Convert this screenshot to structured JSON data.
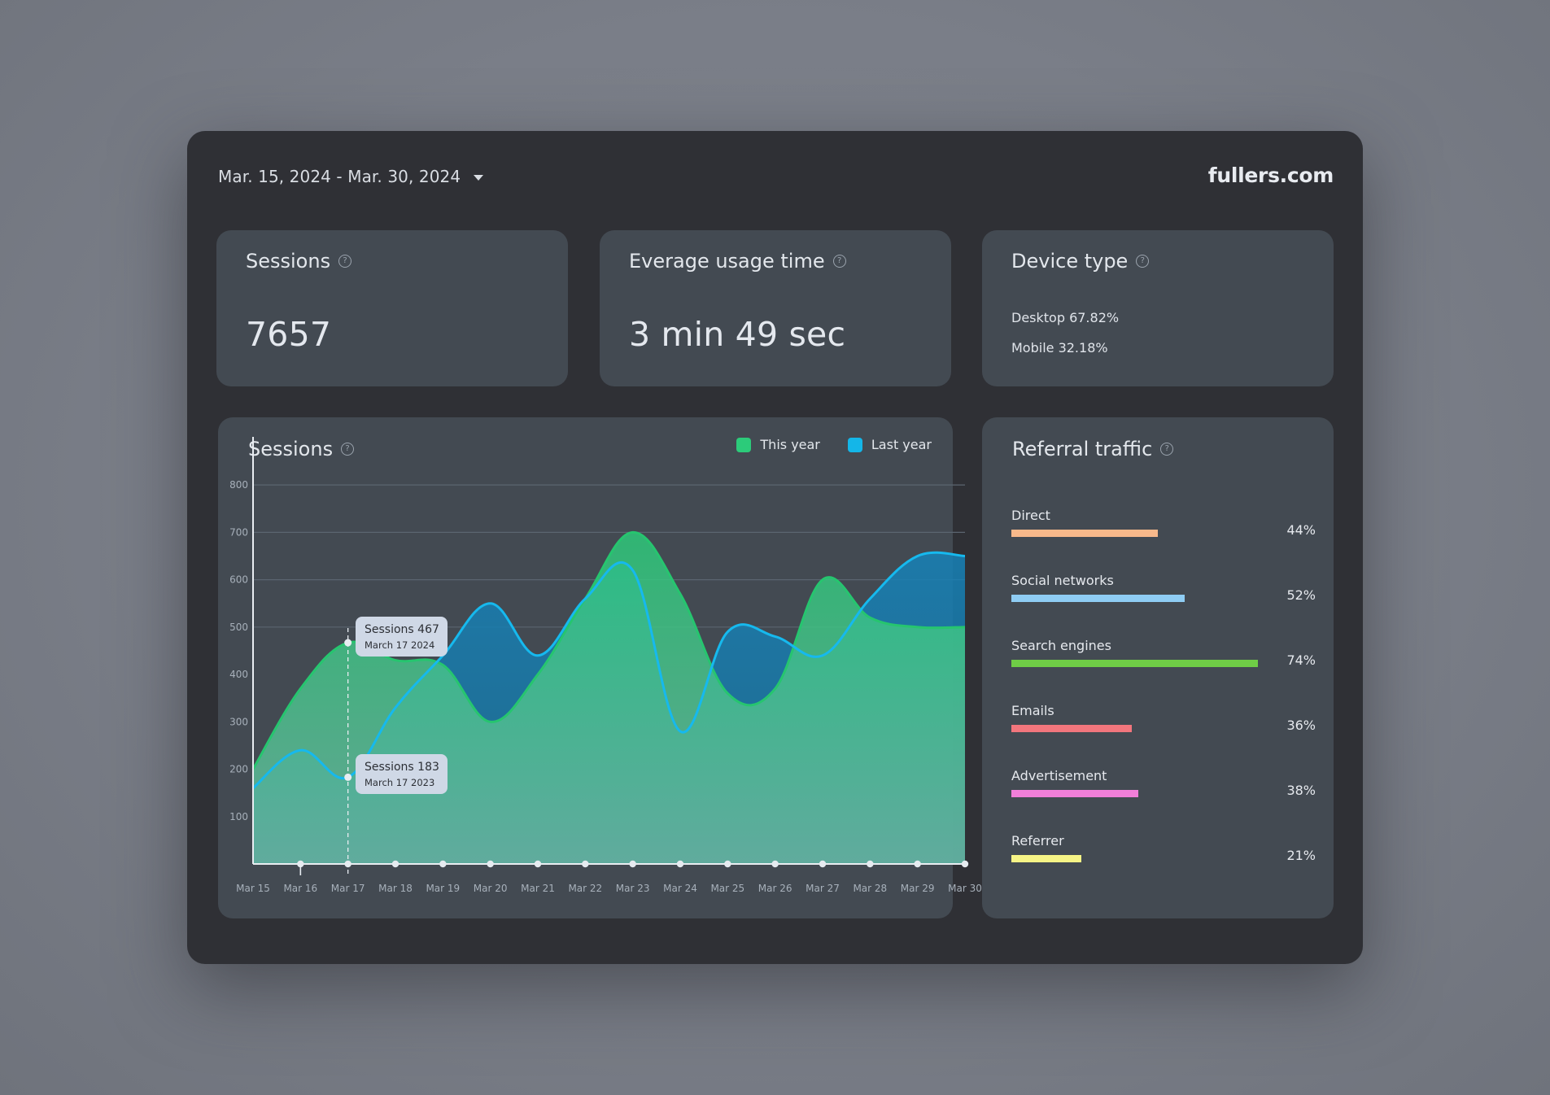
{
  "header": {
    "date_range": "Mar. 15, 2024 - Mar. 30, 2024",
    "brand": "fullers.com"
  },
  "cards": {
    "sessions": {
      "title": "Sessions",
      "value": "7657"
    },
    "usage": {
      "title": "Everage usage time",
      "value": "3 min 49 sec"
    },
    "device": {
      "title": "Device type",
      "desktop": "Desktop 67.82%",
      "mobile": "Mobile 32.18%"
    }
  },
  "sessions_chart": {
    "title": "Sessions",
    "legend": {
      "this_year": "This year",
      "last_year": "Last year"
    },
    "tooltip_this_year": {
      "main": "Sessions 467",
      "sub": "March 17 2024"
    },
    "tooltip_last_year": {
      "main": "Sessions 183",
      "sub": "March 17 2023"
    }
  },
  "chart_data": {
    "type": "area",
    "title": "Sessions",
    "categories": [
      "Mar 15",
      "Mar 16",
      "Mar 17",
      "Mar 18",
      "Mar 19",
      "Mar 20",
      "Mar 21",
      "Mar 22",
      "Mar 23",
      "Mar 24",
      "Mar 25",
      "Mar 26",
      "Mar 27",
      "Mar 28",
      "Mar 29",
      "Mar 30"
    ],
    "series": [
      {
        "name": "This year",
        "color": "#2ccb7a",
        "values": [
          200,
          370,
          467,
          430,
          420,
          300,
          400,
          560,
          700,
          570,
          360,
          370,
          600,
          520,
          500,
          500
        ]
      },
      {
        "name": "Last year",
        "color": "#14b6e8",
        "values": [
          160,
          240,
          183,
          330,
          440,
          550,
          440,
          560,
          620,
          280,
          490,
          480,
          440,
          560,
          650,
          650
        ]
      }
    ],
    "yticks": [
      100,
      200,
      300,
      400,
      500,
      600,
      700,
      800
    ],
    "ylim": [
      0,
      850
    ],
    "grid": true,
    "legend_position": "top-right"
  },
  "referral": {
    "title": "Referral traffic",
    "items": [
      {
        "label": "Direct",
        "pct": "44%",
        "value": 44,
        "color": "#f8b98b"
      },
      {
        "label": "Social networks",
        "pct": "52%",
        "value": 52,
        "color": "#8fcdf4"
      },
      {
        "label": "Search engines",
        "pct": "74%",
        "value": 74,
        "color": "#6fcd46"
      },
      {
        "label": "Emails",
        "pct": "36%",
        "value": 36,
        "color": "#f2767d"
      },
      {
        "label": "Advertisement",
        "pct": "38%",
        "value": 38,
        "color": "#f17fd9"
      },
      {
        "label": "Referrer",
        "pct": "21%",
        "value": 21,
        "color": "#f6f486"
      }
    ]
  }
}
